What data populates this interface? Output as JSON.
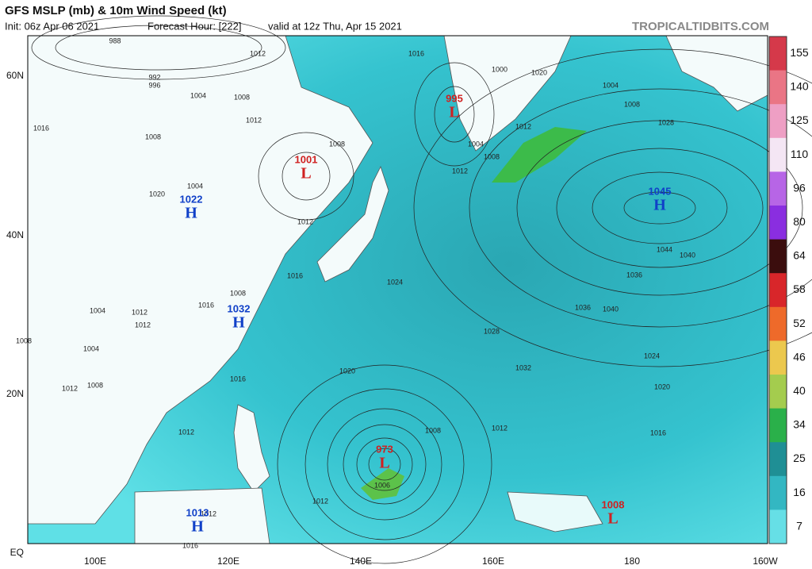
{
  "header": {
    "title": "GFS MSLP (mb) & 10m Wind Speed (kt)",
    "init": "Init: 06z Apr 06 2021",
    "forecast": "Forecast Hour: [222]",
    "valid": "valid at 12z Thu, Apr 15 2021",
    "site": "TROPICALTIDBITS.COM"
  },
  "axes": {
    "lon_labels": [
      "100E",
      "120E",
      "140E",
      "160E",
      "180",
      "160W"
    ],
    "lat_labels": [
      "60N",
      "40N",
      "20N",
      "EQ"
    ]
  },
  "colorbar": {
    "ticks": [
      155,
      140,
      125,
      110,
      96,
      80,
      64,
      58,
      52,
      46,
      40,
      34,
      25,
      16,
      7
    ]
  },
  "centers": [
    {
      "letter": "H",
      "value": 1022
    },
    {
      "letter": "H",
      "value": 1032
    },
    {
      "letter": "H",
      "value": 1013
    },
    {
      "letter": "H",
      "value": 1045
    },
    {
      "letter": "L",
      "value": 1001
    },
    {
      "letter": "L",
      "value": 995
    },
    {
      "letter": "L",
      "value": 973
    },
    {
      "letter": "L",
      "value": 1008
    }
  ],
  "isobar_labels": [
    "988",
    "992",
    "996",
    "1004",
    "1008",
    "1012",
    "1012",
    "1016",
    "1008",
    "1008",
    "1012",
    "1004",
    "1020",
    "1016",
    "1008",
    "1004",
    "1012",
    "1016",
    "1012",
    "1008",
    "1004",
    "1008",
    "1012",
    "1016",
    "1020",
    "1024",
    "1028",
    "1032",
    "1036",
    "1040",
    "1044",
    "1040",
    "1036",
    "1028",
    "1024",
    "1020",
    "1016",
    "1012",
    "1012",
    "1016",
    "1020",
    "1004",
    "1008",
    "1000",
    "1008",
    "1012",
    "1004",
    "1006",
    "1008",
    "1012",
    "1012",
    "1012",
    "1016"
  ]
}
